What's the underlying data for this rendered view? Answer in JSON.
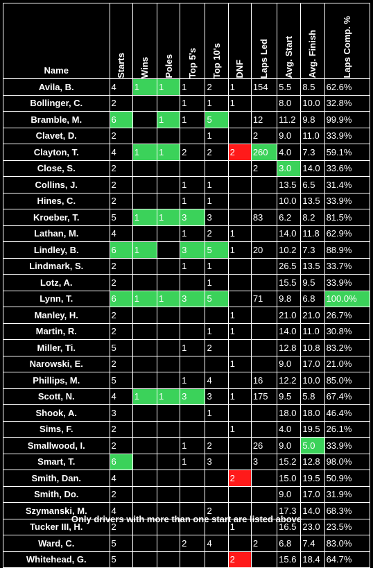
{
  "headers": {
    "name": "Name",
    "cols": [
      "Starts",
      "Wins",
      "Poles",
      "Top 5's",
      "Top 10's",
      "DNF",
      "Laps Led",
      "Avg. Start",
      "Avg. Finish",
      "Laps Comp. %"
    ]
  },
  "colors": {
    "green": "#3bd25a",
    "red": "#ff1a1a"
  },
  "rows": [
    {
      "name": "Avila, B.",
      "cells": [
        "4",
        "1",
        "1",
        "1",
        "2",
        "1",
        "154",
        "5.5",
        "8.5",
        "62.6%"
      ],
      "hl": [
        "",
        "g",
        "g",
        "",
        "",
        "",
        "",
        "",
        "",
        ""
      ]
    },
    {
      "name": "Bollinger, C.",
      "cells": [
        "2",
        "",
        "",
        "1",
        "1",
        "1",
        "",
        "8.0",
        "10.0",
        "32.8%"
      ],
      "hl": [
        "",
        "",
        "",
        "",
        "",
        "",
        "",
        "",
        "",
        ""
      ]
    },
    {
      "name": "Bramble, M.",
      "cells": [
        "6",
        "",
        "1",
        "1",
        "5",
        "",
        "12",
        "11.2",
        "9.8",
        "99.9%"
      ],
      "hl": [
        "g",
        "",
        "g",
        "",
        "g",
        "",
        "",
        "",
        "",
        ""
      ]
    },
    {
      "name": "Clavet, D.",
      "cells": [
        "2",
        "",
        "",
        "",
        "1",
        "",
        "2",
        "9.0",
        "11.0",
        "33.9%"
      ],
      "hl": [
        "",
        "",
        "",
        "",
        "",
        "",
        "",
        "",
        "",
        ""
      ]
    },
    {
      "name": "Clayton, T.",
      "cells": [
        "4",
        "1",
        "1",
        "2",
        "2",
        "2",
        "260",
        "4.0",
        "7.3",
        "59.1%"
      ],
      "hl": [
        "",
        "g",
        "g",
        "",
        "",
        "r",
        "g",
        "",
        "",
        ""
      ]
    },
    {
      "name": "Close, S.",
      "cells": [
        "2",
        "",
        "",
        "",
        "",
        "",
        "2",
        "3.0",
        "14.0",
        "33.6%"
      ],
      "hl": [
        "",
        "",
        "",
        "",
        "",
        "",
        "",
        "g",
        "",
        ""
      ]
    },
    {
      "name": "Collins, J.",
      "cells": [
        "2",
        "",
        "",
        "1",
        "1",
        "",
        "",
        "13.5",
        "6.5",
        "31.4%"
      ],
      "hl": [
        "",
        "",
        "",
        "",
        "",
        "",
        "",
        "",
        "",
        ""
      ]
    },
    {
      "name": "Hines, C.",
      "cells": [
        "2",
        "",
        "",
        "1",
        "1",
        "",
        "",
        "10.0",
        "13.5",
        "33.9%"
      ],
      "hl": [
        "",
        "",
        "",
        "",
        "",
        "",
        "",
        "",
        "",
        ""
      ]
    },
    {
      "name": "Kroeber, T.",
      "cells": [
        "5",
        "1",
        "1",
        "3",
        "3",
        "",
        "83",
        "6.2",
        "8.2",
        "81.5%"
      ],
      "hl": [
        "",
        "g",
        "g",
        "g",
        "",
        "",
        "",
        "",
        "",
        ""
      ]
    },
    {
      "name": "Lathan, M.",
      "cells": [
        "4",
        "",
        "",
        "1",
        "2",
        "1",
        "",
        "14.0",
        "11.8",
        "62.9%"
      ],
      "hl": [
        "",
        "",
        "",
        "",
        "",
        "",
        "",
        "",
        "",
        ""
      ]
    },
    {
      "name": "Lindley, B.",
      "cells": [
        "6",
        "1",
        "",
        "3",
        "5",
        "1",
        "20",
        "10.2",
        "7.3",
        "88.9%"
      ],
      "hl": [
        "g",
        "g",
        "",
        "g",
        "g",
        "",
        "",
        "",
        "",
        ""
      ]
    },
    {
      "name": "Lindmark, S.",
      "cells": [
        "2",
        "",
        "",
        "1",
        "1",
        "",
        "",
        "26.5",
        "13.5",
        "33.7%"
      ],
      "hl": [
        "",
        "",
        "",
        "",
        "",
        "",
        "",
        "",
        "",
        ""
      ]
    },
    {
      "name": "Lotz, A.",
      "cells": [
        "2",
        "",
        "",
        "",
        "1",
        "",
        "",
        "15.5",
        "9.5",
        "33.9%"
      ],
      "hl": [
        "",
        "",
        "",
        "",
        "",
        "",
        "",
        "",
        "",
        ""
      ]
    },
    {
      "name": "Lynn, T.",
      "cells": [
        "6",
        "1",
        "1",
        "3",
        "5",
        "",
        "71",
        "9.8",
        "6.8",
        "100.0%"
      ],
      "hl": [
        "g",
        "g",
        "g",
        "g",
        "g",
        "",
        "",
        "",
        "",
        "g"
      ]
    },
    {
      "name": "Manley, H.",
      "cells": [
        "2",
        "",
        "",
        "",
        "",
        "1",
        "",
        "21.0",
        "21.0",
        "26.7%"
      ],
      "hl": [
        "",
        "",
        "",
        "",
        "",
        "",
        "",
        "",
        "",
        ""
      ]
    },
    {
      "name": "Martin, R.",
      "cells": [
        "2",
        "",
        "",
        "",
        "1",
        "1",
        "",
        "14.0",
        "11.0",
        "30.8%"
      ],
      "hl": [
        "",
        "",
        "",
        "",
        "",
        "",
        "",
        "",
        "",
        ""
      ]
    },
    {
      "name": "Miller, Ti.",
      "cells": [
        "5",
        "",
        "",
        "1",
        "2",
        "",
        "",
        "12.8",
        "10.8",
        "83.2%"
      ],
      "hl": [
        "",
        "",
        "",
        "",
        "",
        "",
        "",
        "",
        "",
        ""
      ]
    },
    {
      "name": "Narowski, E.",
      "cells": [
        "2",
        "",
        "",
        "",
        "",
        "1",
        "",
        "9.0",
        "17.0",
        "21.0%"
      ],
      "hl": [
        "",
        "",
        "",
        "",
        "",
        "",
        "",
        "",
        "",
        ""
      ]
    },
    {
      "name": "Phillips, M.",
      "cells": [
        "5",
        "",
        "",
        "1",
        "4",
        "",
        "16",
        "12.2",
        "10.0",
        "85.0%"
      ],
      "hl": [
        "",
        "",
        "",
        "",
        "",
        "",
        "",
        "",
        "",
        ""
      ]
    },
    {
      "name": "Scott, N.",
      "cells": [
        "4",
        "1",
        "1",
        "3",
        "3",
        "1",
        "175",
        "9.5",
        "5.8",
        "67.4%"
      ],
      "hl": [
        "",
        "g",
        "g",
        "g",
        "",
        "",
        "",
        "",
        "",
        ""
      ]
    },
    {
      "name": "Shook, A.",
      "cells": [
        "3",
        "",
        "",
        "",
        "1",
        "",
        "",
        "18.0",
        "18.0",
        "46.4%"
      ],
      "hl": [
        "",
        "",
        "",
        "",
        "",
        "",
        "",
        "",
        "",
        ""
      ]
    },
    {
      "name": "Sims, F.",
      "cells": [
        "2",
        "",
        "",
        "",
        "",
        "1",
        "",
        "4.0",
        "19.5",
        "26.1%"
      ],
      "hl": [
        "",
        "",
        "",
        "",
        "",
        "",
        "",
        "",
        "",
        ""
      ]
    },
    {
      "name": "Smallwood, I.",
      "cells": [
        "2",
        "",
        "",
        "1",
        "2",
        "",
        "26",
        "9.0",
        "5.0",
        "33.9%"
      ],
      "hl": [
        "",
        "",
        "",
        "",
        "",
        "",
        "",
        "",
        "g",
        ""
      ]
    },
    {
      "name": "Smart, T.",
      "cells": [
        "6",
        "",
        "",
        "1",
        "3",
        "",
        "3",
        "15.2",
        "12.8",
        "98.0%"
      ],
      "hl": [
        "g",
        "",
        "",
        "",
        "",
        "",
        "",
        "",
        "",
        ""
      ]
    },
    {
      "name": "Smith, Dan.",
      "cells": [
        "4",
        "",
        "",
        "",
        "",
        "2",
        "",
        "15.0",
        "19.5",
        "50.9%"
      ],
      "hl": [
        "",
        "",
        "",
        "",
        "",
        "r",
        "",
        "",
        "",
        ""
      ]
    },
    {
      "name": "Smith, Do.",
      "cells": [
        "2",
        "",
        "",
        "",
        "",
        "",
        "",
        "9.0",
        "17.0",
        "31.9%"
      ],
      "hl": [
        "",
        "",
        "",
        "",
        "",
        "",
        "",
        "",
        "",
        ""
      ]
    },
    {
      "name": "Szymanski, M.",
      "cells": [
        "4",
        "",
        "",
        "",
        "2",
        "",
        "",
        "17.3",
        "14.0",
        "68.3%"
      ],
      "hl": [
        "",
        "",
        "",
        "",
        "",
        "",
        "",
        "",
        "",
        ""
      ]
    },
    {
      "name": "Tucker III, H.",
      "cells": [
        "2",
        "",
        "",
        "",
        "",
        "1",
        "",
        "16.5",
        "23.0",
        "23.5%"
      ],
      "hl": [
        "",
        "",
        "",
        "",
        "",
        "",
        "",
        "",
        "",
        ""
      ]
    },
    {
      "name": "Ward, C.",
      "cells": [
        "5",
        "",
        "",
        "2",
        "4",
        "",
        "2",
        "6.8",
        "7.4",
        "83.0%"
      ],
      "hl": [
        "",
        "",
        "",
        "",
        "",
        "",
        "",
        "",
        "",
        ""
      ]
    },
    {
      "name": "Whitehead, G.",
      "cells": [
        "5",
        "",
        "",
        "",
        "",
        "2",
        "",
        "15.6",
        "18.4",
        "64.7%"
      ],
      "hl": [
        "",
        "",
        "",
        "",
        "",
        "r",
        "",
        "",
        "",
        ""
      ]
    }
  ],
  "footer": "Only drivers with more than one start are listed above"
}
